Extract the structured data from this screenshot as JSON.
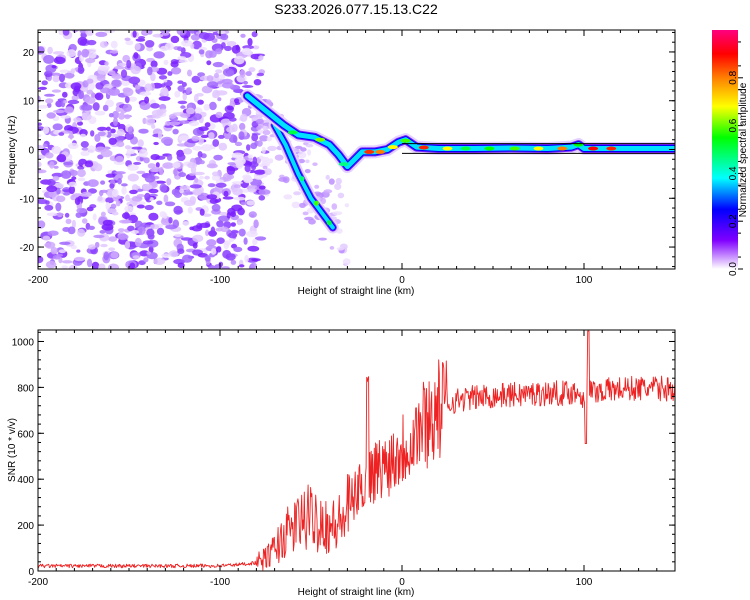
{
  "title": "S233.2026.077.15.13.C22",
  "chart_data": [
    {
      "type": "heatmap",
      "title": "S233.2026.077.15.13.C22",
      "xlabel": "Height of straight line (km)",
      "ylabel": "Frequency (Hz)",
      "xlim": [
        -200,
        150
      ],
      "ylim": [
        -24.5,
        24.5
      ],
      "xticks": [
        "-200",
        "-100",
        "0",
        "100"
      ],
      "xtick_values": [
        -200,
        -100,
        0,
        100
      ],
      "yticks": [
        "20",
        "10",
        "0",
        "-10",
        "-20"
      ],
      "ytick_values": [
        20,
        10,
        0,
        -10,
        -20
      ],
      "colorbar": {
        "label": "Normalized spectral amplitude",
        "range": [
          0,
          1
        ],
        "ticks": [
          "0.0",
          "0.2",
          "0.4",
          "0.6",
          "0.8"
        ],
        "tick_values": [
          0.0,
          0.2,
          0.4,
          0.6,
          0.8
        ],
        "colors": [
          "#ffffff",
          "#8000ff",
          "#0000ff",
          "#00ffff",
          "#00ff00",
          "#ffff00",
          "#ff8000",
          "#ff0000",
          "#ff0080"
        ]
      },
      "features": {
        "noise_region_x": [
          -200,
          -77
        ],
        "signal_trace": [
          [
            -85,
            11
          ],
          [
            -75,
            8
          ],
          [
            -65,
            5
          ],
          [
            -57,
            3
          ],
          [
            -48,
            2.5
          ],
          [
            -40,
            1
          ],
          [
            -35,
            -1
          ],
          [
            -30,
            -3.5
          ],
          [
            -26,
            -2
          ],
          [
            -22,
            -0.5
          ],
          [
            -15,
            -0.5
          ],
          [
            -8,
            0
          ],
          [
            -2,
            1.5
          ],
          [
            2,
            2
          ],
          [
            8,
            0.5
          ],
          [
            20,
            0.2
          ],
          [
            40,
            0.2
          ],
          [
            60,
            0.3
          ],
          [
            80,
            0.2
          ],
          [
            93,
            0.5
          ],
          [
            97,
            1
          ],
          [
            100,
            0.2
          ],
          [
            150,
            0.2
          ]
        ],
        "secondary_branch": [
          [
            -70,
            5
          ],
          [
            -64,
            1
          ],
          [
            -57,
            -5
          ],
          [
            -50,
            -10
          ],
          [
            -42,
            -14
          ],
          [
            -38,
            -16
          ]
        ]
      },
      "horizontal_lines_hz": [
        1.2,
        -0.8
      ]
    },
    {
      "type": "line",
      "xlabel": "Height of straight line (km)",
      "ylabel": "SNR (10 * v/v)",
      "xlim": [
        -200,
        150
      ],
      "ylim": [
        0,
        1050
      ],
      "xticks": [
        "-200",
        "-100",
        "0",
        "100"
      ],
      "xtick_values": [
        -200,
        -100,
        0,
        100
      ],
      "yticks": [
        "0",
        "200",
        "400",
        "600",
        "800",
        "1000"
      ],
      "ytick_values": [
        0,
        200,
        400,
        600,
        800,
        1000
      ],
      "series_color": "#ee2222",
      "series": [
        {
          "name": "SNR",
          "x": [
            -200,
            -180,
            -160,
            -140,
            -120,
            -100,
            -90,
            -80,
            -75,
            -70,
            -65,
            -60,
            -55,
            -50,
            -45,
            -40,
            -36,
            -32,
            -28,
            -24,
            -20,
            -18,
            -16,
            -12,
            -8,
            -4,
            0,
            4,
            8,
            12,
            16,
            20,
            24,
            28,
            32,
            36,
            40,
            50,
            60,
            70,
            80,
            90,
            96,
            100,
            102,
            104,
            108,
            115,
            125,
            135,
            150
          ],
          "values": [
            22,
            22,
            22,
            22,
            22,
            23,
            28,
            36,
            55,
            95,
            150,
            190,
            220,
            235,
            225,
            195,
            195,
            230,
            300,
            350,
            390,
            420,
            430,
            445,
            470,
            505,
            535,
            565,
            610,
            645,
            675,
            700,
            720,
            738,
            748,
            752,
            756,
            762,
            768,
            772,
            774,
            776,
            780,
            760,
            790,
            780,
            785,
            790,
            795,
            795,
            795
          ]
        }
      ]
    }
  ]
}
